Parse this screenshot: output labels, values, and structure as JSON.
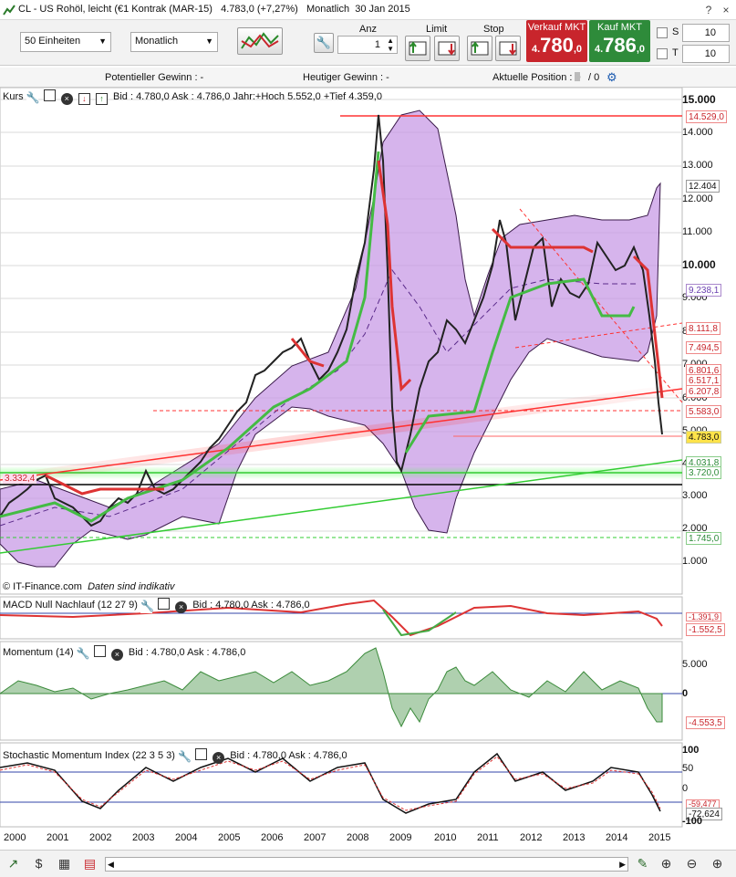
{
  "window": {
    "title": "CL - US Rohöl, leicht (€1 Kontrak (MAR-15)",
    "last": "4.783,0 (+7,27%)",
    "interval": "Monatlich",
    "date": "30 Jan 2015",
    "help": "?",
    "close": "×"
  },
  "toolbar": {
    "units_select": "50 Einheiten",
    "period_select": "Monatlich",
    "anz_label": "Anz",
    "anz_value": "1",
    "limit_label": "Limit",
    "stop_label": "Stop",
    "sell_label": "Verkauf MKT",
    "buy_label": "Kauf MKT",
    "sell_prefix": "4.",
    "sell_main": "780",
    "sell_suffix": ",0",
    "buy_prefix": "4.",
    "buy_main": "786",
    "buy_suffix": ",0",
    "s_label": "S",
    "s_value": "10",
    "t_label": "T",
    "t_value": "10",
    "colors": {
      "sell": "#c8252c",
      "buy": "#2e8b3a"
    }
  },
  "gains": {
    "potential": "Potentieller Gewinn : -",
    "today": "Heutiger Gewinn : -",
    "position": "Aktuelle Position : 0",
    "position_b": "/ 0"
  },
  "price_panel": {
    "name": "Kurs",
    "info": "Bid : 4.780,0 Ask : 4.786,0 Jahr:+Hoch 5.552,0 +Tief 4.359,0",
    "credit": "© IT-Finance.com",
    "credit_note": "Daten sind indikativ",
    "axis": [
      "15.000",
      "14.000",
      "13.000",
      "12.000",
      "11.000",
      "10.000",
      "9.000",
      "8.000",
      "7.000",
      "6.000",
      "5.000",
      "4.000",
      "3.000",
      "2.000",
      "1.000"
    ],
    "tags": [
      {
        "text": "14.529,0",
        "color": "#c8252c"
      },
      {
        "text": "12.404",
        "color": "#111"
      },
      {
        "text": "9.238,1",
        "color": "#6a3fb0"
      },
      {
        "text": "8.111,8",
        "color": "#c8252c"
      },
      {
        "text": "7.494,5",
        "color": "#c8252c"
      },
      {
        "text": "6.801,6",
        "color": "#c8252c"
      },
      {
        "text": "6.517,1",
        "color": "#c8252c"
      },
      {
        "text": "6.207,8",
        "color": "#c8252c"
      },
      {
        "text": "5.583,0",
        "color": "#c8252c"
      },
      {
        "text": "4.783,0",
        "color": "#111"
      },
      {
        "text": "4.031,8",
        "color": "#2e8b3a"
      },
      {
        "text": "3.720,0",
        "color": "#2e8b3a"
      },
      {
        "text": "1.745,0",
        "color": "#2e8b3a"
      }
    ],
    "left_tag": "3.332,4"
  },
  "macd_panel": {
    "name": "MACD Null Nachlauf (12 27 9)",
    "info": "Bid : 4.780,0 Ask : 4.786,0",
    "tag": "-1.552,5",
    "tag2": "-1.391,9"
  },
  "momentum_panel": {
    "name": "Momentum (14)",
    "info": "Bid : 4.780,0 Ask : 4.786,0",
    "axis": [
      "5.000",
      "0"
    ],
    "tag": "-4.553,5"
  },
  "stoch_panel": {
    "name": "Stochastic Momentum Index (22 3 5 3)",
    "info": "Bid : 4.780,0 Ask : 4.786,0",
    "axis": [
      "100",
      "50",
      "0",
      "-100"
    ],
    "tag": "-72,624",
    "tag2": "-59,477"
  },
  "years": [
    "2000",
    "2001",
    "2002",
    "2003",
    "2004",
    "2005",
    "2006",
    "2007",
    "2008",
    "2009",
    "2010",
    "2011",
    "2012",
    "2013",
    "2014",
    "2015"
  ],
  "chart_data": {
    "type": "line",
    "x": [
      "2000",
      "2001",
      "2002",
      "2003",
      "2004",
      "2005",
      "2006",
      "2007",
      "2008",
      "2009",
      "2010",
      "2011",
      "2012",
      "2013",
      "2014",
      "2015"
    ],
    "series": [
      {
        "values": [
          2500,
          3000,
          2000,
          3000,
          3400,
          5000,
          6500,
          7000,
          13500,
          4000,
          7800,
          10000,
          9000,
          9500,
          10000,
          4783
        ]
      }
    ],
    "ylim": [
      0,
      15500
    ],
    "scale": "log",
    "grid": true
  }
}
